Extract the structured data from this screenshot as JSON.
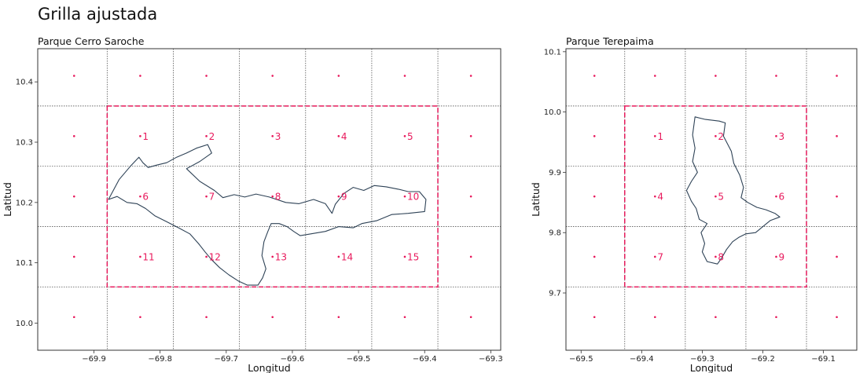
{
  "figure_title": "Grilla ajustada",
  "colors": {
    "accent": "#e8195c",
    "outline": "#2e4256",
    "grid": "#555555",
    "axes": "#333333"
  },
  "chart_data": [
    {
      "type": "scatter",
      "title": "Parque Cerro Saroche",
      "xlabel": "Longitud",
      "ylabel": "Latitud",
      "xlim": [
        -69.985,
        -69.285
      ],
      "ylim": [
        9.955,
        10.455
      ],
      "xticks": [
        -69.9,
        -69.8,
        -69.7,
        -69.6,
        -69.5,
        -69.4,
        -69.3
      ],
      "xtick_labels": [
        "−69.9",
        "−69.8",
        "−69.7",
        "−69.6",
        "−69.5",
        "−69.4",
        "−69.3"
      ],
      "yticks": [
        10.0,
        10.1,
        10.2,
        10.3,
        10.4
      ],
      "ytick_labels": [
        "10.0",
        "10.1",
        "10.2",
        "10.3",
        "10.4"
      ],
      "grid_x": [
        -69.88,
        -69.78,
        -69.68,
        -69.58,
        -69.48,
        -69.38
      ],
      "grid_y": [
        10.06,
        10.16,
        10.26,
        10.36
      ],
      "bbox_dashed": {
        "x": [
          -69.88,
          -69.38
        ],
        "y": [
          10.06,
          10.36
        ]
      },
      "points_x": [
        -69.93,
        -69.83,
        -69.73,
        -69.63,
        -69.53,
        -69.43,
        -69.33
      ],
      "points_y": [
        10.41,
        10.31,
        10.21,
        10.11,
        10.01
      ],
      "labeled_points": [
        {
          "label": "1",
          "x": -69.83,
          "y": 10.31
        },
        {
          "label": "2",
          "x": -69.73,
          "y": 10.31
        },
        {
          "label": "3",
          "x": -69.63,
          "y": 10.31
        },
        {
          "label": "4",
          "x": -69.53,
          "y": 10.31
        },
        {
          "label": "5",
          "x": -69.43,
          "y": 10.31
        },
        {
          "label": "6",
          "x": -69.83,
          "y": 10.21
        },
        {
          "label": "7",
          "x": -69.73,
          "y": 10.21
        },
        {
          "label": "8",
          "x": -69.63,
          "y": 10.21
        },
        {
          "label": "9",
          "x": -69.53,
          "y": 10.21
        },
        {
          "label": "10",
          "x": -69.43,
          "y": 10.21
        },
        {
          "label": "11",
          "x": -69.83,
          "y": 10.11
        },
        {
          "label": "12",
          "x": -69.73,
          "y": 10.11
        },
        {
          "label": "13",
          "x": -69.63,
          "y": 10.11
        },
        {
          "label": "14",
          "x": -69.53,
          "y": 10.11
        },
        {
          "label": "15",
          "x": -69.43,
          "y": 10.11
        }
      ],
      "outline": [
        [
          -69.878,
          10.205
        ],
        [
          -69.862,
          10.238
        ],
        [
          -69.845,
          10.26
        ],
        [
          -69.832,
          10.275
        ],
        [
          -69.826,
          10.266
        ],
        [
          -69.818,
          10.258
        ],
        [
          -69.805,
          10.262
        ],
        [
          -69.79,
          10.266
        ],
        [
          -69.775,
          10.275
        ],
        [
          -69.76,
          10.282
        ],
        [
          -69.745,
          10.29
        ],
        [
          -69.728,
          10.296
        ],
        [
          -69.722,
          10.282
        ],
        [
          -69.74,
          10.268
        ],
        [
          -69.76,
          10.256
        ],
        [
          -69.74,
          10.235
        ],
        [
          -69.718,
          10.22
        ],
        [
          -69.705,
          10.208
        ],
        [
          -69.688,
          10.213
        ],
        [
          -69.672,
          10.209
        ],
        [
          -69.655,
          10.214
        ],
        [
          -69.635,
          10.209
        ],
        [
          -69.61,
          10.2
        ],
        [
          -69.59,
          10.198
        ],
        [
          -69.568,
          10.205
        ],
        [
          -69.55,
          10.198
        ],
        [
          -69.54,
          10.182
        ],
        [
          -69.535,
          10.197
        ],
        [
          -69.522,
          10.215
        ],
        [
          -69.508,
          10.225
        ],
        [
          -69.492,
          10.22
        ],
        [
          -69.476,
          10.228
        ],
        [
          -69.458,
          10.226
        ],
        [
          -69.44,
          10.222
        ],
        [
          -69.425,
          10.218
        ],
        [
          -69.408,
          10.218
        ],
        [
          -69.398,
          10.205
        ],
        [
          -69.4,
          10.185
        ],
        [
          -69.425,
          10.182
        ],
        [
          -69.45,
          10.18
        ],
        [
          -69.472,
          10.17
        ],
        [
          -69.495,
          10.165
        ],
        [
          -69.508,
          10.158
        ],
        [
          -69.53,
          10.16
        ],
        [
          -69.55,
          10.152
        ],
        [
          -69.572,
          10.148
        ],
        [
          -69.588,
          10.145
        ],
        [
          -69.598,
          10.152
        ],
        [
          -69.608,
          10.16
        ],
        [
          -69.62,
          10.165
        ],
        [
          -69.632,
          10.165
        ],
        [
          -69.637,
          10.152
        ],
        [
          -69.643,
          10.135
        ],
        [
          -69.646,
          10.112
        ],
        [
          -69.64,
          10.09
        ],
        [
          -69.645,
          10.075
        ],
        [
          -69.652,
          10.063
        ],
        [
          -69.668,
          10.063
        ],
        [
          -69.682,
          10.07
        ],
        [
          -69.696,
          10.08
        ],
        [
          -69.71,
          10.092
        ],
        [
          -69.722,
          10.105
        ],
        [
          -69.732,
          10.118
        ],
        [
          -69.742,
          10.132
        ],
        [
          -69.755,
          10.148
        ],
        [
          -69.772,
          10.158
        ],
        [
          -69.79,
          10.168
        ],
        [
          -69.808,
          10.178
        ],
        [
          -69.822,
          10.19
        ],
        [
          -69.835,
          10.198
        ],
        [
          -69.85,
          10.2
        ],
        [
          -69.865,
          10.21
        ],
        [
          -69.878,
          10.205
        ]
      ]
    },
    {
      "type": "scatter",
      "title": "Parque Terepaima",
      "xlabel": "Longitud",
      "ylabel": "Latitud",
      "xlim": [
        -69.525,
        -69.045
      ],
      "ylim": [
        9.605,
        10.105
      ],
      "xticks": [
        -69.5,
        -69.4,
        -69.3,
        -69.2,
        -69.1
      ],
      "xtick_labels": [
        "−69.5",
        "−69.4",
        "−69.3",
        "−69.2",
        "−69.1"
      ],
      "yticks": [
        9.7,
        9.8,
        9.9,
        10.0,
        10.1
      ],
      "ytick_labels": [
        "9.7",
        "9.8",
        "9.9",
        "10.0",
        "10.1"
      ],
      "grid_x": [
        -69.428,
        -69.328,
        -69.228,
        -69.128
      ],
      "grid_y": [
        9.71,
        9.81,
        9.91,
        10.01
      ],
      "bbox_dashed": {
        "x": [
          -69.428,
          -69.128
        ],
        "y": [
          9.71,
          10.01
        ]
      },
      "points_x": [
        -69.478,
        -69.378,
        -69.278,
        -69.178,
        -69.078
      ],
      "points_y": [
        10.06,
        9.96,
        9.86,
        9.76,
        9.66
      ],
      "labeled_points": [
        {
          "label": "1",
          "x": -69.378,
          "y": 9.96
        },
        {
          "label": "2",
          "x": -69.278,
          "y": 9.96
        },
        {
          "label": "3",
          "x": -69.178,
          "y": 9.96
        },
        {
          "label": "4",
          "x": -69.378,
          "y": 9.86
        },
        {
          "label": "5",
          "x": -69.278,
          "y": 9.86
        },
        {
          "label": "6",
          "x": -69.178,
          "y": 9.86
        },
        {
          "label": "7",
          "x": -69.378,
          "y": 9.76
        },
        {
          "label": "8",
          "x": -69.278,
          "y": 9.76
        },
        {
          "label": "9",
          "x": -69.178,
          "y": 9.76
        }
      ],
      "outline": [
        [
          -69.312,
          9.992
        ],
        [
          -69.296,
          9.988
        ],
        [
          -69.272,
          9.985
        ],
        [
          -69.262,
          9.982
        ],
        [
          -69.265,
          9.96
        ],
        [
          -69.252,
          9.935
        ],
        [
          -69.248,
          9.915
        ],
        [
          -69.238,
          9.895
        ],
        [
          -69.232,
          9.875
        ],
        [
          -69.236,
          9.858
        ],
        [
          -69.225,
          9.85
        ],
        [
          -69.21,
          9.842
        ],
        [
          -69.195,
          9.838
        ],
        [
          -69.18,
          9.832
        ],
        [
          -69.172,
          9.826
        ],
        [
          -69.188,
          9.82
        ],
        [
          -69.2,
          9.81
        ],
        [
          -69.212,
          9.8
        ],
        [
          -69.228,
          9.798
        ],
        [
          -69.24,
          9.792
        ],
        [
          -69.25,
          9.785
        ],
        [
          -69.26,
          9.772
        ],
        [
          -69.268,
          9.758
        ],
        [
          -69.275,
          9.748
        ],
        [
          -69.292,
          9.752
        ],
        [
          -69.3,
          9.768
        ],
        [
          -69.296,
          9.782
        ],
        [
          -69.302,
          9.8
        ],
        [
          -69.292,
          9.815
        ],
        [
          -69.305,
          9.822
        ],
        [
          -69.31,
          9.84
        ],
        [
          -69.318,
          9.852
        ],
        [
          -69.326,
          9.87
        ],
        [
          -69.318,
          9.885
        ],
        [
          -69.308,
          9.9
        ],
        [
          -69.316,
          9.918
        ],
        [
          -69.312,
          9.94
        ],
        [
          -69.316,
          9.962
        ],
        [
          -69.312,
          9.992
        ]
      ]
    }
  ]
}
